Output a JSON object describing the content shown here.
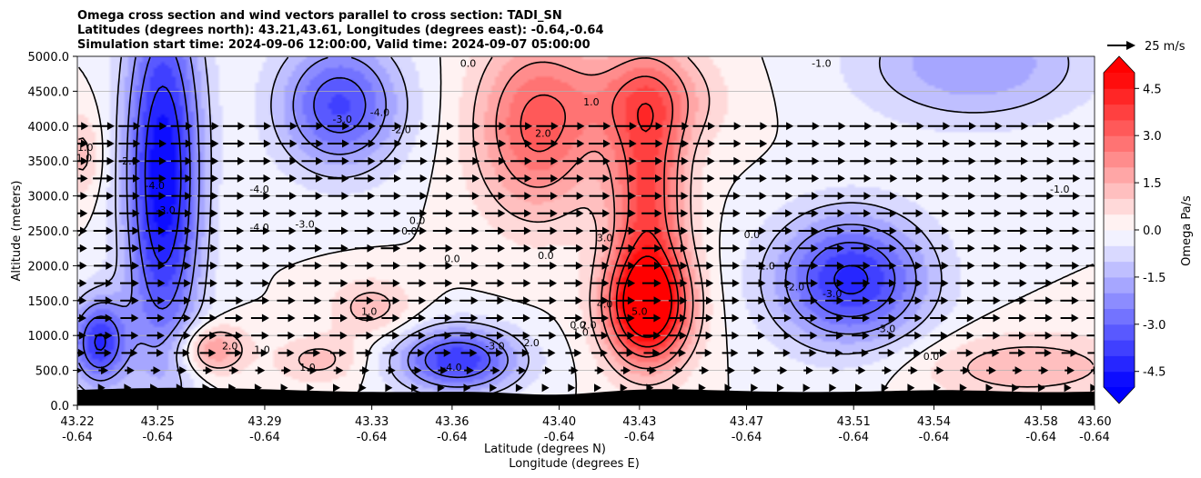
{
  "chart_data": {
    "type": "contour",
    "title_lines": [
      "Omega cross section and wind vectors parallel to cross section: TADI_SN",
      "Latitudes (degrees north): 43.21,43.61, Longitudes (degrees east): -0.64,-0.64",
      "Simulation start time: 2024-09-06 12:00:00, Valid time: 2024-09-07 05:00:00"
    ],
    "ylabel": "Altitude (meters)",
    "xlabel_lines": [
      "Latitude (degrees N)",
      "Longitude (degrees E)"
    ],
    "ylim": [
      0,
      5000
    ],
    "yticks": [
      "0.0",
      "500.0",
      "1000.0",
      "1500.0",
      "2000.0",
      "2500.0",
      "3000.0",
      "3500.0",
      "4000.0",
      "4500.0",
      "5000.0"
    ],
    "xlim": [
      43.22,
      43.6
    ],
    "xticks": [
      {
        "lat": "43.22",
        "lon": "-0.64"
      },
      {
        "lat": "43.25",
        "lon": "-0.64"
      },
      {
        "lat": "43.29",
        "lon": "-0.64"
      },
      {
        "lat": "43.33",
        "lon": "-0.64"
      },
      {
        "lat": "43.36",
        "lon": "-0.64"
      },
      {
        "lat": "43.40",
        "lon": "-0.64"
      },
      {
        "lat": "43.43",
        "lon": "-0.64"
      },
      {
        "lat": "43.47",
        "lon": "-0.64"
      },
      {
        "lat": "43.51",
        "lon": "-0.64"
      },
      {
        "lat": "43.54",
        "lon": "-0.64"
      },
      {
        "lat": "43.58",
        "lon": "-0.64"
      },
      {
        "lat": "43.60",
        "lon": "-0.64"
      }
    ],
    "colorbar": {
      "label": "Omega Pa/s",
      "range": [
        -5.0,
        5.0
      ],
      "step": 0.5,
      "ticks": [
        "-4.5",
        "-3.0",
        "-1.5",
        "0.0",
        "1.5",
        "3.0",
        "4.5"
      ],
      "extend": "both",
      "colormap": "bwr"
    },
    "quiver_key": "25 m/s",
    "grid": "horizontal",
    "omega_features": [
      {
        "lat": 43.252,
        "alt": 3300,
        "omega": -5.0,
        "sx": 0.01,
        "sy": 1900
      },
      {
        "lat": 43.228,
        "alt": 900,
        "omega": -4.0,
        "sx": 0.0075,
        "sy": 450
      },
      {
        "lat": 43.318,
        "alt": 4300,
        "omega": -3.6,
        "sx": 0.016,
        "sy": 650
      },
      {
        "lat": 43.362,
        "alt": 650,
        "omega": -4.0,
        "sx": 0.016,
        "sy": 330
      },
      {
        "lat": 43.509,
        "alt": 1800,
        "omega": -4.2,
        "sx": 0.02,
        "sy": 650
      },
      {
        "lat": 43.555,
        "alt": 4900,
        "omega": -2.0,
        "sx": 0.03,
        "sy": 600
      },
      {
        "lat": 43.392,
        "alt": 4000,
        "omega": 3.2,
        "sx": 0.016,
        "sy": 900
      },
      {
        "lat": 43.433,
        "alt": 1400,
        "omega": 5.6,
        "sx": 0.011,
        "sy": 550
      },
      {
        "lat": 43.433,
        "alt": 3000,
        "omega": 3.5,
        "sx": 0.01,
        "sy": 1200
      },
      {
        "lat": 43.433,
        "alt": 4400,
        "omega": 2.0,
        "sx": 0.018,
        "sy": 500
      },
      {
        "lat": 43.27,
        "alt": 800,
        "omega": 2.2,
        "sx": 0.009,
        "sy": 250
      },
      {
        "lat": 43.31,
        "alt": 650,
        "omega": 1.2,
        "sx": 0.012,
        "sy": 250
      },
      {
        "lat": 43.33,
        "alt": 1400,
        "omega": 1.3,
        "sx": 0.011,
        "sy": 300
      },
      {
        "lat": 43.575,
        "alt": 550,
        "omega": 1.4,
        "sx": 0.03,
        "sy": 350
      },
      {
        "lat": 43.222,
        "alt": 3600,
        "omega": 1.2,
        "sx": 0.005,
        "sy": 450
      }
    ],
    "contour_labels": [
      {
        "text": "1.0",
        "lat": 43.2225,
        "alt": 3550
      },
      {
        "text": "1.0",
        "lat": 43.223,
        "alt": 3700
      },
      {
        "text": "-2.0",
        "lat": 43.239,
        "alt": 3500
      },
      {
        "text": "-4.0",
        "lat": 43.249,
        "alt": 3150
      },
      {
        "text": "-3.0",
        "lat": 43.253,
        "alt": 2800
      },
      {
        "text": "-4.0",
        "lat": 43.288,
        "alt": 3100
      },
      {
        "text": "-4.0",
        "lat": 43.288,
        "alt": 2550
      },
      {
        "text": "-3.0",
        "lat": 43.305,
        "alt": 2600
      },
      {
        "text": "-3.0",
        "lat": 43.319,
        "alt": 4100
      },
      {
        "text": "-4.0",
        "lat": 43.333,
        "alt": 4200
      },
      {
        "text": "-2.0",
        "lat": 43.341,
        "alt": 3950
      },
      {
        "text": "0.0",
        "lat": 43.347,
        "alt": 2650
      },
      {
        "text": "0.0",
        "lat": 43.344,
        "alt": 2500
      },
      {
        "text": "0.0",
        "lat": 43.36,
        "alt": 2100
      },
      {
        "text": "0.0",
        "lat": 43.366,
        "alt": 4900
      },
      {
        "text": "2.0",
        "lat": 43.394,
        "alt": 3900
      },
      {
        "text": "1.0",
        "lat": 43.412,
        "alt": 4350
      },
      {
        "text": "1.0",
        "lat": 43.329,
        "alt": 1350
      },
      {
        "text": "2.0",
        "lat": 43.277,
        "alt": 850
      },
      {
        "text": "1.0",
        "lat": 43.289,
        "alt": 800
      },
      {
        "text": "1.0",
        "lat": 43.306,
        "alt": 550
      },
      {
        "text": "0.0",
        "lat": 43.395,
        "alt": 2150
      },
      {
        "text": "-2.0",
        "lat": 43.389,
        "alt": 900
      },
      {
        "text": "-3.0",
        "lat": 43.376,
        "alt": 850
      },
      {
        "text": "-4.0",
        "lat": 43.36,
        "alt": 550
      },
      {
        "text": "3.0",
        "lat": 43.417,
        "alt": 2400
      },
      {
        "text": "4.0",
        "lat": 43.417,
        "alt": 1450
      },
      {
        "text": "5.0",
        "lat": 43.43,
        "alt": 1350
      },
      {
        "text": "0.0",
        "lat": 43.407,
        "alt": 1150
      },
      {
        "text": "1.0",
        "lat": 43.408,
        "alt": 1050
      },
      {
        "text": "2.0",
        "lat": 43.411,
        "alt": 1150
      },
      {
        "text": "0.0",
        "lat": 43.472,
        "alt": 2450
      },
      {
        "text": "-1.0",
        "lat": 43.477,
        "alt": 2000
      },
      {
        "text": "-2.0",
        "lat": 43.488,
        "alt": 1700
      },
      {
        "text": "-3.0",
        "lat": 43.502,
        "alt": 1600
      },
      {
        "text": "-3.0",
        "lat": 43.522,
        "alt": 1100
      },
      {
        "text": "0.0",
        "lat": 43.539,
        "alt": 700
      },
      {
        "text": "-1.0",
        "lat": 43.587,
        "alt": 3100
      },
      {
        "text": "-1.0",
        "lat": 43.498,
        "alt": 4900
      }
    ]
  }
}
